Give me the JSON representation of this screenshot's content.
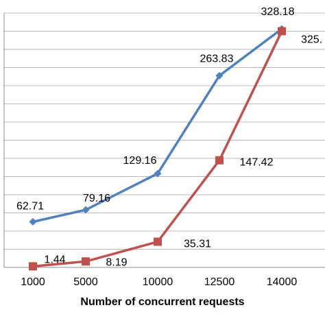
{
  "chart_data": {
    "type": "line",
    "categories": [
      "1000",
      "5000",
      "10000",
      "12500",
      "14000"
    ],
    "xlabel": "Number of concurrent requests",
    "ylabel": "",
    "ylim": [
      0,
      350
    ],
    "grid": true,
    "series": [
      {
        "color": "#4f81bd",
        "marker": "diamond",
        "values": [
          62.71,
          79.16,
          129.16,
          263.83,
          328.18
        ],
        "labels": [
          "62.71",
          "79.16",
          "129.16",
          "263.83",
          "328.18"
        ]
      },
      {
        "color": "#c0504d",
        "marker": "square",
        "values": [
          1.44,
          8.19,
          35.31,
          147.42,
          325.0
        ],
        "labels": [
          "1.44",
          "8.19",
          "35.31",
          "147.42",
          "325."
        ]
      }
    ]
  }
}
